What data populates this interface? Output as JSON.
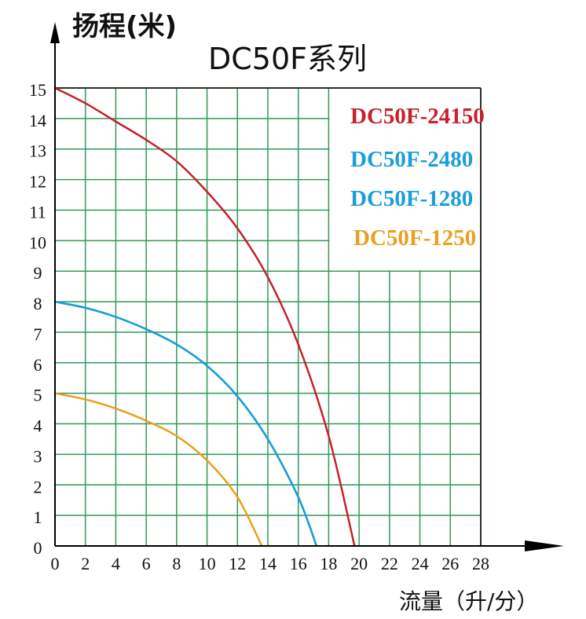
{
  "chart_data": {
    "type": "line",
    "title": "DC50F系列",
    "ylabel": "扬程(米)",
    "xlabel": "流量（升/分）",
    "xlim": [
      0,
      28
    ],
    "ylim": [
      0,
      15
    ],
    "xticks": [
      "0",
      "2",
      "4",
      "6",
      "8",
      "10",
      "12",
      "14",
      "16",
      "18",
      "20",
      "22",
      "24",
      "26",
      "28"
    ],
    "yticks": [
      "0",
      "1",
      "2",
      "3",
      "4",
      "5",
      "6",
      "7",
      "8",
      "9",
      "10",
      "11",
      "12",
      "13",
      "14",
      "15"
    ],
    "grid": true,
    "grid_color": "#2e9a58",
    "legend_position": "top-right",
    "series": [
      {
        "name": "DC50F-24150",
        "color": "#c8202c",
        "x": [
          0,
          2,
          4,
          6,
          8,
          10,
          12,
          14,
          16,
          18,
          19.7
        ],
        "y": [
          15,
          14.5,
          13.9,
          13.3,
          12.6,
          11.6,
          10.4,
          8.8,
          6.6,
          3.6,
          0
        ]
      },
      {
        "name": "DC50F-2480",
        "color": "#1a9ed8",
        "x": [
          0,
          2,
          4,
          6,
          8,
          10,
          12,
          14,
          16,
          17.2
        ],
        "y": [
          8,
          7.8,
          7.5,
          7.1,
          6.6,
          5.9,
          4.9,
          3.5,
          1.6,
          0
        ]
      },
      {
        "name": "DC50F-1280",
        "color": "#1a9ed8",
        "x": [
          0,
          2,
          4,
          6,
          8,
          10,
          12,
          14,
          16,
          17.2
        ],
        "y": [
          8,
          7.8,
          7.5,
          7.1,
          6.6,
          5.9,
          4.9,
          3.5,
          1.6,
          0
        ]
      },
      {
        "name": "DC50F-1250",
        "color": "#e8a020",
        "x": [
          0,
          2,
          4,
          6,
          8,
          10,
          12,
          13.6
        ],
        "y": [
          5,
          4.8,
          4.5,
          4.1,
          3.6,
          2.8,
          1.6,
          0
        ]
      }
    ]
  }
}
